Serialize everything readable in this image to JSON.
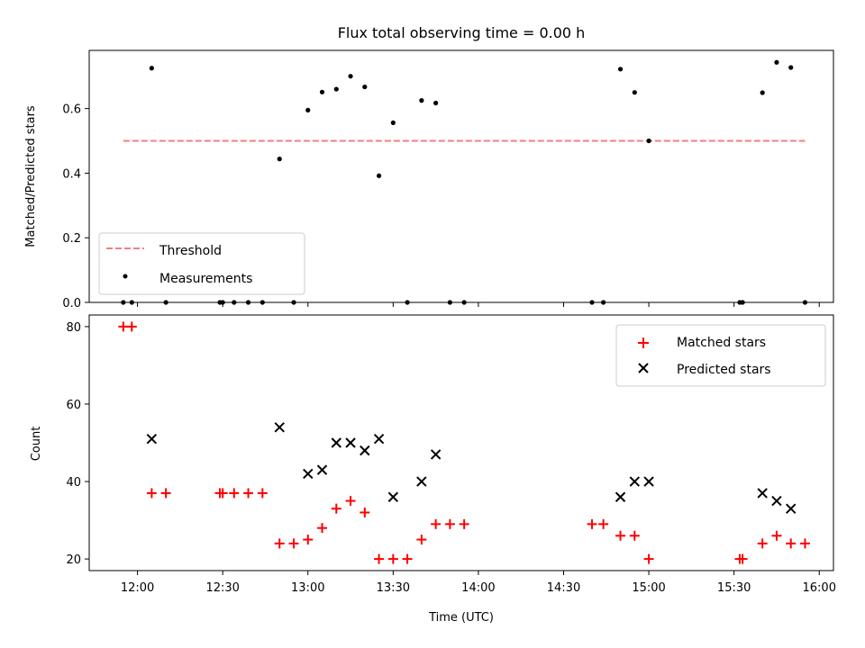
{
  "title": "Flux total observing time = 0.00 h",
  "top_panel": {
    "ylabel": "Matched/Predicted stars",
    "ylim": [
      0,
      0.78
    ],
    "yticks": [
      {
        "v": 0.0,
        "label": "0.0"
      },
      {
        "v": 0.2,
        "label": "0.2"
      },
      {
        "v": 0.4,
        "label": "0.4"
      },
      {
        "v": 0.6,
        "label": "0.6"
      }
    ],
    "legend": {
      "threshold": "Threshold",
      "measurements": "Measurements"
    }
  },
  "bottom_panel": {
    "ylabel": "Count",
    "ylim": [
      17,
      83
    ],
    "yticks": [
      {
        "v": 20,
        "label": "20"
      },
      {
        "v": 40,
        "label": "40"
      },
      {
        "v": 60,
        "label": "60"
      },
      {
        "v": 80,
        "label": "80"
      }
    ],
    "legend": {
      "matched": "Matched stars",
      "predicted": "Predicted stars"
    }
  },
  "xlabel": "Time (UTC)",
  "xticks": [
    {
      "t": "12:00",
      "label": "12:00"
    },
    {
      "t": "12:30",
      "label": "12:30"
    },
    {
      "t": "13:00",
      "label": "13:00"
    },
    {
      "t": "13:30",
      "label": "13:30"
    },
    {
      "t": "14:00",
      "label": "14:00"
    },
    {
      "t": "14:30",
      "label": "14:30"
    },
    {
      "t": "15:00",
      "label": "15:00"
    },
    {
      "t": "15:30",
      "label": "15:30"
    },
    {
      "t": "16:00",
      "label": "16:00"
    }
  ],
  "xlim": [
    "11:43",
    "16:05"
  ],
  "colors": {
    "threshold": "#f08080",
    "measurement": "#000000",
    "matched": "#ff0000",
    "predicted": "#000000"
  },
  "chart_data": [
    {
      "type": "scatter",
      "title": "Flux total observing time = 0.00 h",
      "xlabel": "",
      "ylabel": "Matched/Predicted stars",
      "ylim": [
        0,
        0.78
      ],
      "threshold": {
        "name": "Threshold",
        "value": 0.5,
        "x_range": [
          "11:55",
          "15:55"
        ]
      },
      "series": [
        {
          "name": "Measurements",
          "points": [
            {
              "x": "11:55",
              "y": 0.0
            },
            {
              "x": "11:58",
              "y": 0.0
            },
            {
              "x": "12:05",
              "y": 0.725
            },
            {
              "x": "12:10",
              "y": 0.0
            },
            {
              "x": "12:29",
              "y": 0.0
            },
            {
              "x": "12:30",
              "y": 0.0
            },
            {
              "x": "12:34",
              "y": 0.0
            },
            {
              "x": "12:39",
              "y": 0.0
            },
            {
              "x": "12:44",
              "y": 0.0
            },
            {
              "x": "12:50",
              "y": 0.444
            },
            {
              "x": "12:55",
              "y": 0.0
            },
            {
              "x": "13:00",
              "y": 0.595
            },
            {
              "x": "13:05",
              "y": 0.651
            },
            {
              "x": "13:10",
              "y": 0.66
            },
            {
              "x": "13:15",
              "y": 0.7
            },
            {
              "x": "13:20",
              "y": 0.667
            },
            {
              "x": "13:25",
              "y": 0.392
            },
            {
              "x": "13:30",
              "y": 0.556
            },
            {
              "x": "13:35",
              "y": 0.0
            },
            {
              "x": "13:40",
              "y": 0.625
            },
            {
              "x": "13:45",
              "y": 0.617
            },
            {
              "x": "13:50",
              "y": 0.0
            },
            {
              "x": "13:55",
              "y": 0.0
            },
            {
              "x": "14:40",
              "y": 0.0
            },
            {
              "x": "14:44",
              "y": 0.0
            },
            {
              "x": "14:50",
              "y": 0.722
            },
            {
              "x": "14:55",
              "y": 0.65
            },
            {
              "x": "15:00",
              "y": 0.5
            },
            {
              "x": "15:32",
              "y": 0.0
            },
            {
              "x": "15:33",
              "y": 0.0
            },
            {
              "x": "15:40",
              "y": 0.649
            },
            {
              "x": "15:45",
              "y": 0.743
            },
            {
              "x": "15:50",
              "y": 0.727
            },
            {
              "x": "15:55",
              "y": 0.0
            }
          ]
        }
      ]
    },
    {
      "type": "scatter",
      "xlabel": "Time (UTC)",
      "ylabel": "Count",
      "ylim": [
        17,
        83
      ],
      "series": [
        {
          "name": "Matched stars",
          "points": [
            {
              "x": "11:55",
              "y": 80
            },
            {
              "x": "11:58",
              "y": 80
            },
            {
              "x": "12:05",
              "y": 37
            },
            {
              "x": "12:10",
              "y": 37
            },
            {
              "x": "12:29",
              "y": 37
            },
            {
              "x": "12:30",
              "y": 37
            },
            {
              "x": "12:34",
              "y": 37
            },
            {
              "x": "12:39",
              "y": 37
            },
            {
              "x": "12:44",
              "y": 37
            },
            {
              "x": "12:50",
              "y": 24
            },
            {
              "x": "12:55",
              "y": 24
            },
            {
              "x": "13:00",
              "y": 25
            },
            {
              "x": "13:05",
              "y": 28
            },
            {
              "x": "13:10",
              "y": 33
            },
            {
              "x": "13:15",
              "y": 35
            },
            {
              "x": "13:20",
              "y": 32
            },
            {
              "x": "13:25",
              "y": 20
            },
            {
              "x": "13:30",
              "y": 20
            },
            {
              "x": "13:35",
              "y": 20
            },
            {
              "x": "13:40",
              "y": 25
            },
            {
              "x": "13:45",
              "y": 29
            },
            {
              "x": "13:50",
              "y": 29
            },
            {
              "x": "13:55",
              "y": 29
            },
            {
              "x": "14:40",
              "y": 29
            },
            {
              "x": "14:44",
              "y": 29
            },
            {
              "x": "14:50",
              "y": 26
            },
            {
              "x": "14:55",
              "y": 26
            },
            {
              "x": "15:00",
              "y": 20
            },
            {
              "x": "15:32",
              "y": 20
            },
            {
              "x": "15:33",
              "y": 20
            },
            {
              "x": "15:40",
              "y": 24
            },
            {
              "x": "15:45",
              "y": 26
            },
            {
              "x": "15:50",
              "y": 24
            },
            {
              "x": "15:55",
              "y": 24
            }
          ]
        },
        {
          "name": "Predicted stars",
          "points": [
            {
              "x": "12:05",
              "y": 51
            },
            {
              "x": "12:50",
              "y": 54
            },
            {
              "x": "13:00",
              "y": 42
            },
            {
              "x": "13:05",
              "y": 43
            },
            {
              "x": "13:10",
              "y": 50
            },
            {
              "x": "13:15",
              "y": 50
            },
            {
              "x": "13:20",
              "y": 48
            },
            {
              "x": "13:25",
              "y": 51
            },
            {
              "x": "13:30",
              "y": 36
            },
            {
              "x": "13:40",
              "y": 40
            },
            {
              "x": "13:45",
              "y": 47
            },
            {
              "x": "14:50",
              "y": 36
            },
            {
              "x": "14:55",
              "y": 40
            },
            {
              "x": "15:00",
              "y": 40
            },
            {
              "x": "15:40",
              "y": 37
            },
            {
              "x": "15:45",
              "y": 35
            },
            {
              "x": "15:50",
              "y": 33
            }
          ]
        }
      ]
    }
  ]
}
